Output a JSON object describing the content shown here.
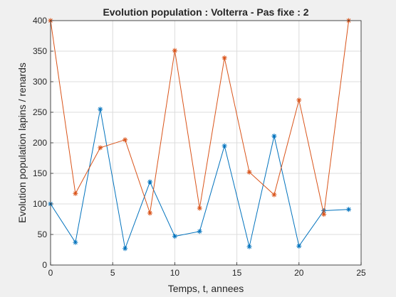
{
  "chart_data": {
    "type": "line",
    "title": "Evolution population : Volterra - Pas fixe : 2",
    "xlabel": "Temps, t, annees",
    "ylabel": "Evolution population lapins / renards",
    "xlim": [
      0,
      25
    ],
    "ylim": [
      0,
      400
    ],
    "xticks": [
      0,
      5,
      10,
      15,
      20,
      25
    ],
    "yticks": [
      0,
      50,
      100,
      150,
      200,
      250,
      300,
      350,
      400
    ],
    "grid": true,
    "legend": "none",
    "x": [
      0,
      2,
      4,
      6,
      8,
      10,
      12,
      14,
      16,
      18,
      20,
      22,
      24
    ],
    "series": [
      {
        "color": "#0072BD",
        "values": [
          100,
          37,
          255,
          27,
          136,
          47,
          55,
          195,
          30,
          211,
          31,
          89,
          91
        ]
      },
      {
        "color": "#D95319",
        "values": [
          400,
          117,
          192,
          205,
          85,
          351,
          93,
          339,
          152,
          115,
          270,
          83,
          400
        ]
      }
    ]
  }
}
